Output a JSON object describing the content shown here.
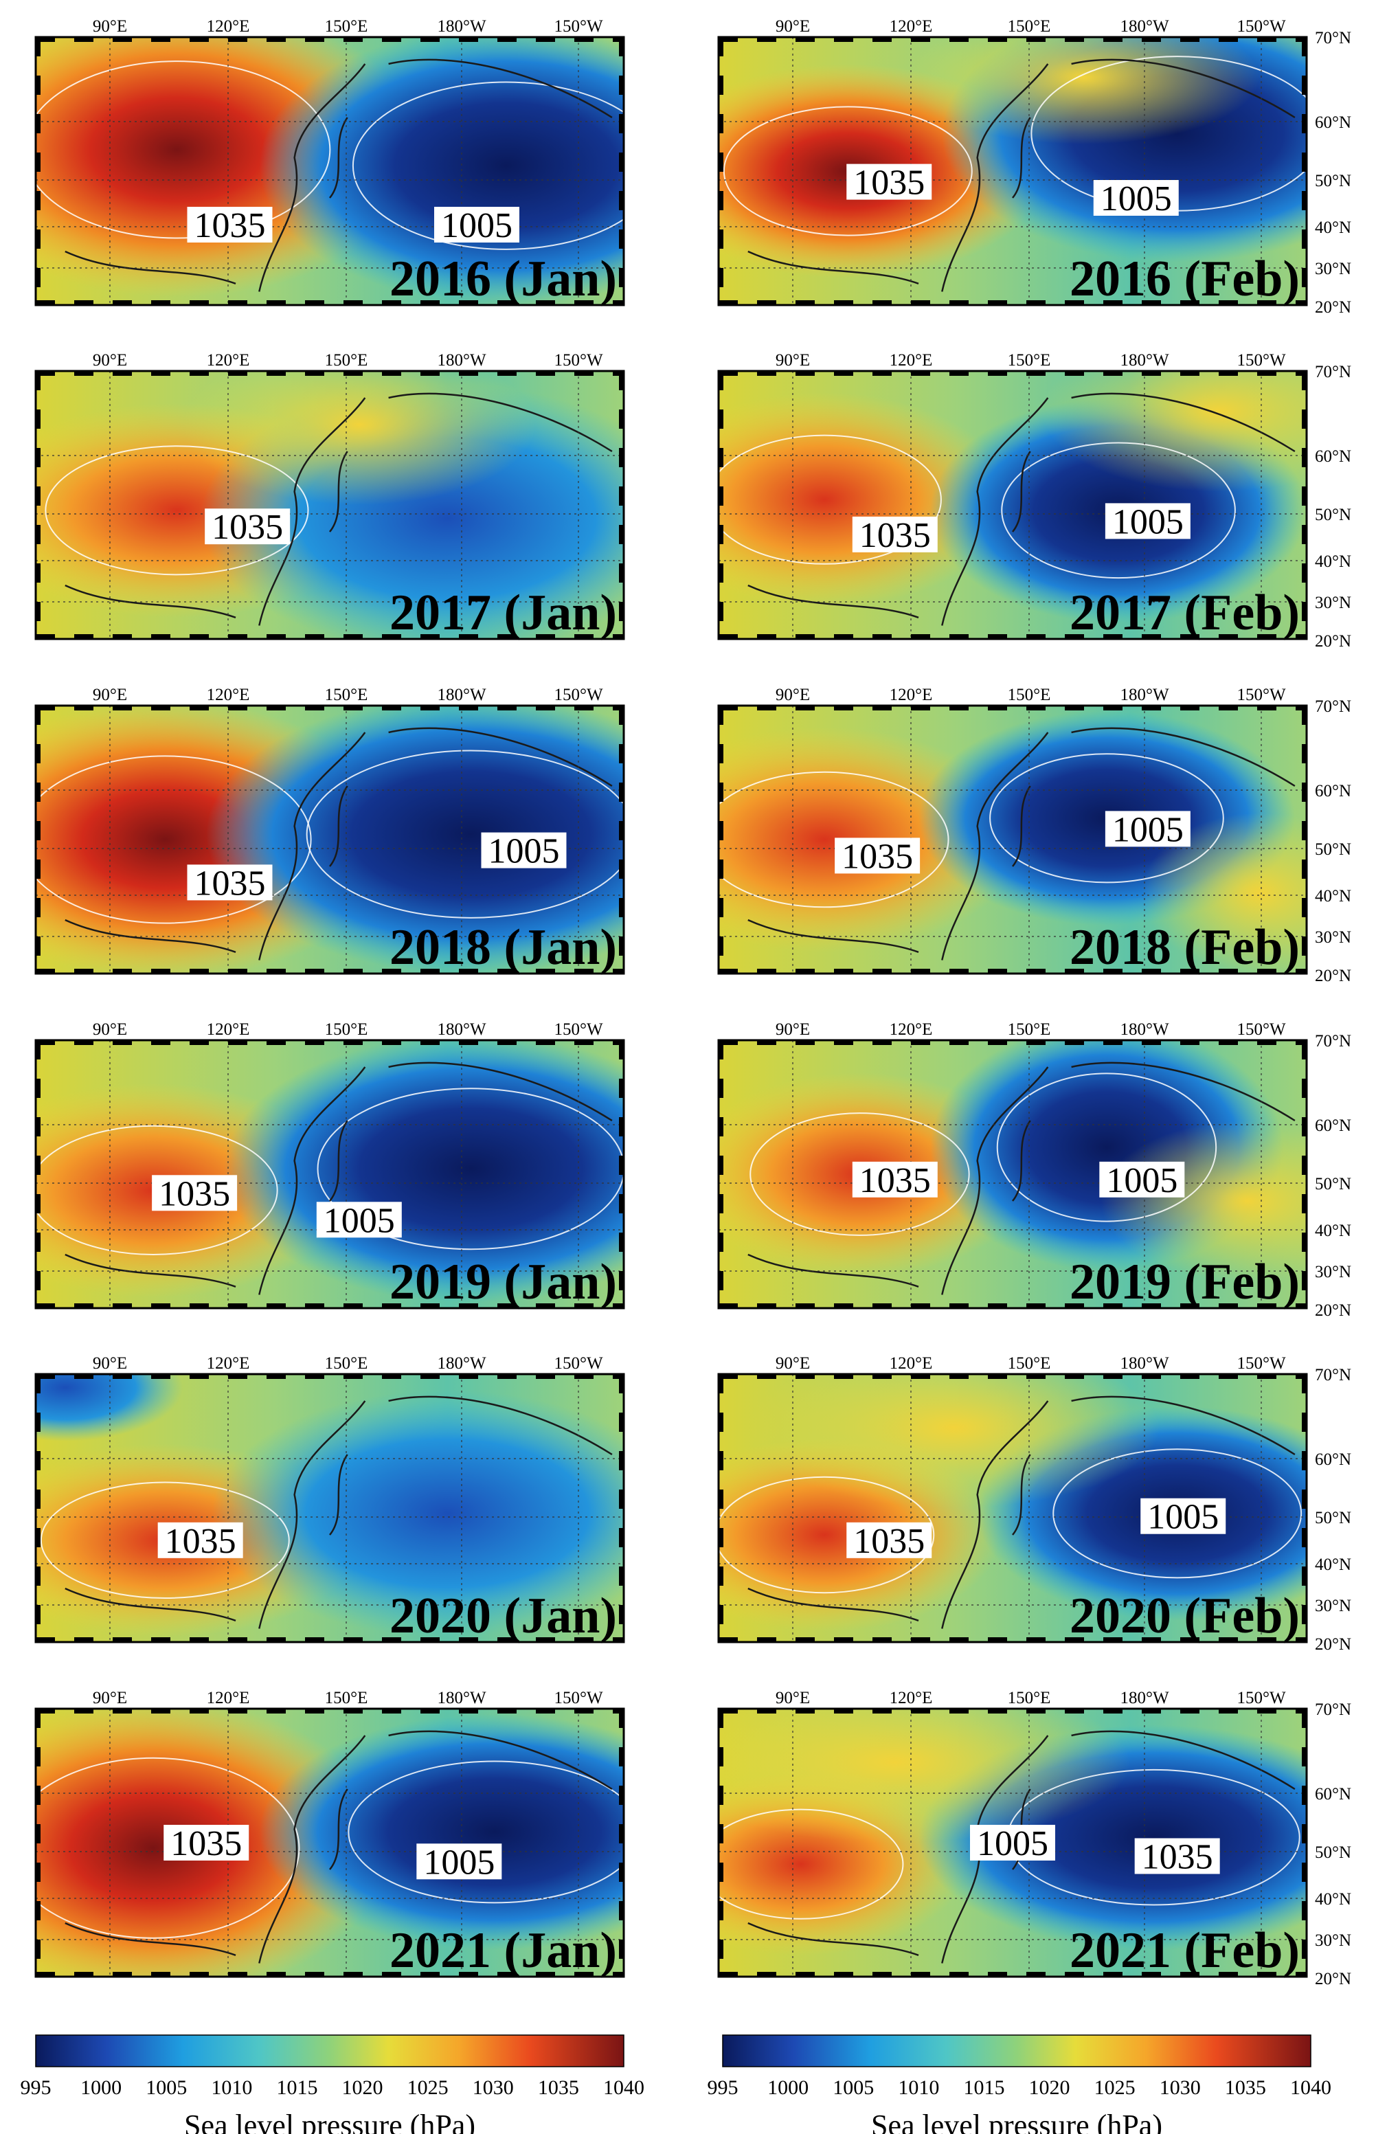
{
  "figure": {
    "lon_ticks": [
      "90°E",
      "120°E",
      "150°E",
      "180°W",
      "150°W"
    ],
    "lat_ticks": [
      "70°N",
      "60°N",
      "50°N",
      "40°N",
      "30°N",
      "20°N"
    ],
    "panels": [
      {
        "id": "2016-jan",
        "title": "2016 (Jan)",
        "labels": [
          "1035",
          "1005"
        ]
      },
      {
        "id": "2016-feb",
        "title": "2016 (Feb)",
        "labels": [
          "1035",
          "1005"
        ]
      },
      {
        "id": "2017-jan",
        "title": "2017 (Jan)",
        "labels": [
          "1035"
        ]
      },
      {
        "id": "2017-feb",
        "title": "2017 (Feb)",
        "labels": [
          "1035",
          "1005"
        ]
      },
      {
        "id": "2018-jan",
        "title": "2018 (Jan)",
        "labels": [
          "1035",
          "1005"
        ]
      },
      {
        "id": "2018-feb",
        "title": "2018 (Feb)",
        "labels": [
          "1035",
          "1005"
        ]
      },
      {
        "id": "2019-jan",
        "title": "2019 (Jan)",
        "labels": [
          "1035",
          "1005"
        ]
      },
      {
        "id": "2019-feb",
        "title": "2019 (Feb)",
        "labels": [
          "1035",
          "1005"
        ]
      },
      {
        "id": "2020-jan",
        "title": "2020 (Jan)",
        "labels": [
          "1035"
        ]
      },
      {
        "id": "2020-feb",
        "title": "2020 (Feb)",
        "labels": [
          "1035",
          "1005"
        ]
      },
      {
        "id": "2021-jan",
        "title": "2021 (Jan)",
        "labels": [
          "1035",
          "1005"
        ]
      },
      {
        "id": "2021-feb",
        "title": "2021 (Feb)",
        "labels": [
          "1035",
          "1005"
        ]
      }
    ],
    "colorbars": [
      {
        "id": "left",
        "ticks": [
          "995",
          "1000",
          "1005",
          "1010",
          "1015",
          "1020",
          "1025",
          "1030",
          "1035",
          "1040"
        ],
        "title": "Sea level pressure (hPa)"
      },
      {
        "id": "right",
        "ticks": [
          "995",
          "1000",
          "1005",
          "1010",
          "1015",
          "1020",
          "1025",
          "1030",
          "1035",
          "1040"
        ],
        "title": "Sea level pressure (hPa)"
      }
    ],
    "colors": {
      "low": "#0a1a5c",
      "mid_blue": "#1f7fd6",
      "cyan": "#2fb8d8",
      "green": "#62c79e",
      "yellow": "#e6dc3a",
      "orange": "#f39a2a",
      "red": "#e43a1e",
      "high": "#8a1a1a"
    }
  }
}
